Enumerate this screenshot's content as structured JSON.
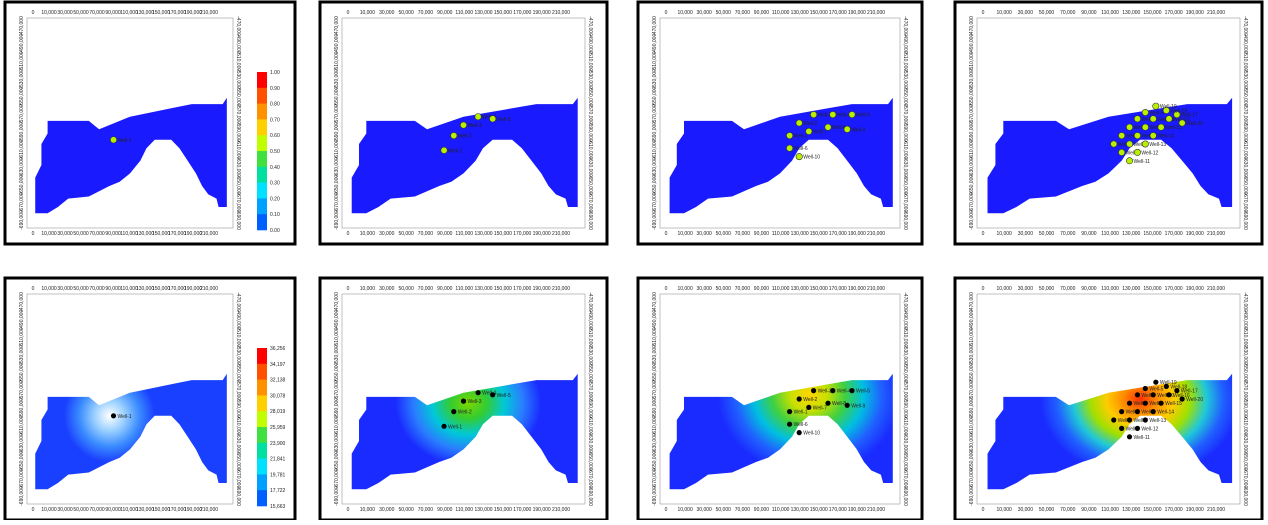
{
  "x_axis_labels": [
    "0",
    "10,000",
    "30,000",
    "50,000",
    "70,000",
    "90,000",
    "110,000",
    "130,000",
    "150,000",
    "170,000",
    "190,000",
    "210,000"
  ],
  "y_axis_labels": [
    "-470,000",
    "-490,000",
    "-510,000",
    "-530,000",
    "-550,000",
    "-570,000",
    "-590,000",
    "-610,000",
    "-630,000",
    "-650,000",
    "-670,000",
    "-690,000"
  ],
  "colorbars": {
    "saturation": [
      "1.00",
      "0.90",
      "0.80",
      "0.70",
      "0.60",
      "0.50",
      "0.40",
      "0.30",
      "0.20",
      "0.10",
      "0.00"
    ],
    "pressure": [
      "36,256",
      "34,197",
      "32,138",
      "30,078",
      "28,019",
      "25,959",
      "23,900",
      "21,841",
      "19,781",
      "17,722",
      "15,663"
    ]
  },
  "panels": [
    {
      "wells": [
        "Well-1"
      ]
    },
    {
      "wells": [
        "Well-1",
        "Well-2",
        "Well-3",
        "Well-4",
        "Well-5"
      ]
    },
    {
      "wells": [
        "Well-1",
        "Well-2",
        "Well-3",
        "Well-4",
        "Well-5",
        "Well-6",
        "Well-7",
        "Well-8",
        "Well-9",
        "Well-10"
      ]
    },
    {
      "wells": [
        "Well-1",
        "Well-2",
        "Well-3",
        "Well-4",
        "Well-5",
        "Well-6",
        "Well-7",
        "Well-8",
        "Well-9",
        "Well-10",
        "Well-11",
        "Well-12",
        "Well-13",
        "Well-14",
        "Well-15",
        "Well-16",
        "Well-17",
        "Well-18",
        "Well-19",
        "Well-20"
      ]
    },
    {
      "wells": [
        "Well-1"
      ]
    },
    {
      "wells": [
        "Well-1",
        "Well-2",
        "Well-3",
        "Well-4",
        "Well-5"
      ]
    },
    {
      "wells": [
        "Well-1",
        "Well-2",
        "Well-3",
        "Well-4",
        "Well-5",
        "Well-6",
        "Well-7",
        "Well-8",
        "Well-9",
        "Well-10"
      ]
    },
    {
      "wells": [
        "Well-1",
        "Well-2",
        "Well-3",
        "Well-4",
        "Well-5",
        "Well-6",
        "Well-7",
        "Well-8",
        "Well-9",
        "Well-10",
        "Well-11",
        "Well-12",
        "Well-13",
        "Well-14",
        "Well-15",
        "Well-16",
        "Well-17",
        "Well-18",
        "Well-19",
        "Well-20"
      ]
    }
  ]
}
